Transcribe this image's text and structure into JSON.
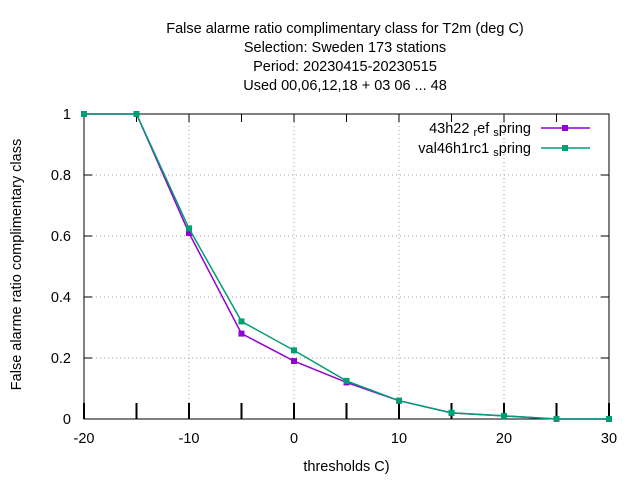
{
  "chart_data": {
    "type": "line",
    "title": [
      "False alarme ratio complimentary class  for T2m (deg C)",
      "Selection: Sweden    173 stations",
      "Period: 20230415-20230515",
      "Used  00,06,12,18  + 03 06 ... 48"
    ],
    "xlabel": "thresholds C)",
    "ylabel": "False alarme ratio complimentary class",
    "xlim": [
      -20,
      30
    ],
    "ylim": [
      0,
      1
    ],
    "xticks": [
      -20,
      -10,
      0,
      10,
      20,
      30
    ],
    "xtick_labels": [
      "-20",
      "-10",
      "0",
      "10",
      "20",
      "30"
    ],
    "yticks": [
      0,
      0.2,
      0.4,
      0.6,
      0.8,
      1
    ],
    "ytick_labels": [
      "0",
      "0.2",
      "0.4",
      "0.6",
      "0.8",
      "1"
    ],
    "grid": true,
    "legend_position": "top-right",
    "x": [
      -20,
      -15,
      -10,
      -5,
      0,
      5,
      10,
      15,
      20,
      25,
      30
    ],
    "series": [
      {
        "name": "43h22_ref_spring",
        "legend_parts": [
          "43h22 ",
          "r",
          "ef ",
          "s",
          "pring"
        ],
        "color": "#9400d3",
        "values": [
          1.0,
          1.0,
          0.61,
          0.28,
          0.19,
          0.12,
          0.06,
          0.02,
          0.01,
          0.0,
          0.0
        ]
      },
      {
        "name": "val46h1rc1_spring",
        "legend_parts": [
          "val46h1rc1 ",
          "s",
          "pring"
        ],
        "color": "#009e73",
        "values": [
          1.0,
          1.0,
          0.625,
          0.32,
          0.225,
          0.125,
          0.06,
          0.02,
          0.01,
          0.0,
          0.0
        ]
      }
    ]
  }
}
